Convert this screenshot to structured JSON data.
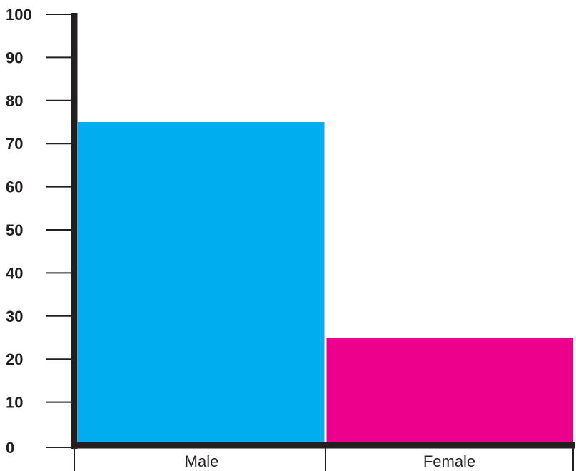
{
  "chart_data": {
    "type": "bar",
    "title": "",
    "xlabel": "",
    "ylabel": "",
    "categories": [
      "Male",
      "Female"
    ],
    "values": [
      75,
      25
    ],
    "ylim": [
      0,
      100
    ],
    "yticks": [
      "0",
      "10",
      "20",
      "30",
      "40",
      "50",
      "60",
      "70",
      "80",
      "90",
      "100"
    ],
    "colors": [
      "#00aeef",
      "#ec008c"
    ],
    "axis_color": "#231f20",
    "grid": false,
    "legend": "none"
  }
}
